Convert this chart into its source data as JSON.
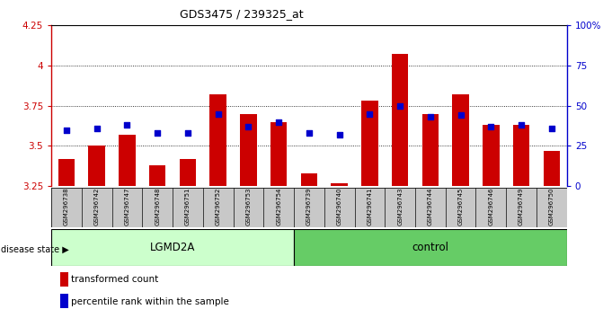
{
  "title": "GDS3475 / 239325_at",
  "samples": [
    "GSM296738",
    "GSM296742",
    "GSM296747",
    "GSM296748",
    "GSM296751",
    "GSM296752",
    "GSM296753",
    "GSM296754",
    "GSM296739",
    "GSM296740",
    "GSM296741",
    "GSM296743",
    "GSM296744",
    "GSM296745",
    "GSM296746",
    "GSM296749",
    "GSM296750"
  ],
  "groups": [
    "LGMD2A",
    "LGMD2A",
    "LGMD2A",
    "LGMD2A",
    "LGMD2A",
    "LGMD2A",
    "LGMD2A",
    "LGMD2A",
    "control",
    "control",
    "control",
    "control",
    "control",
    "control",
    "control",
    "control",
    "control"
  ],
  "red_values": [
    3.42,
    3.5,
    3.57,
    3.38,
    3.42,
    3.82,
    3.7,
    3.65,
    3.33,
    3.27,
    3.78,
    4.07,
    3.7,
    3.82,
    3.63,
    3.63,
    3.47
  ],
  "blue_pct": [
    35,
    36,
    38,
    33,
    33,
    45,
    37,
    40,
    33,
    32,
    45,
    50,
    43,
    44,
    37,
    38,
    36
  ],
  "ylim_left": [
    3.25,
    4.25
  ],
  "ylim_right": [
    0,
    100
  ],
  "yticks_left": [
    3.25,
    3.5,
    3.75,
    4.0,
    4.25
  ],
  "ytick_labels_left": [
    "3.25",
    "3.5",
    "3.75",
    "4",
    "4.25"
  ],
  "yticks_right": [
    0,
    25,
    50,
    75,
    100
  ],
  "ytick_labels_right": [
    "0",
    "25",
    "50",
    "75",
    "100%"
  ],
  "group_colors": {
    "LGMD2A": "#ccffcc",
    "control": "#66cc66"
  },
  "bar_color": "#cc0000",
  "dot_color": "#0000cc",
  "bar_bottom": 3.25,
  "dot_size": 18,
  "bar_width": 0.55,
  "background_color": "#c8c8c8",
  "left_spine_color": "#cc0000",
  "right_spine_color": "#0000cc"
}
